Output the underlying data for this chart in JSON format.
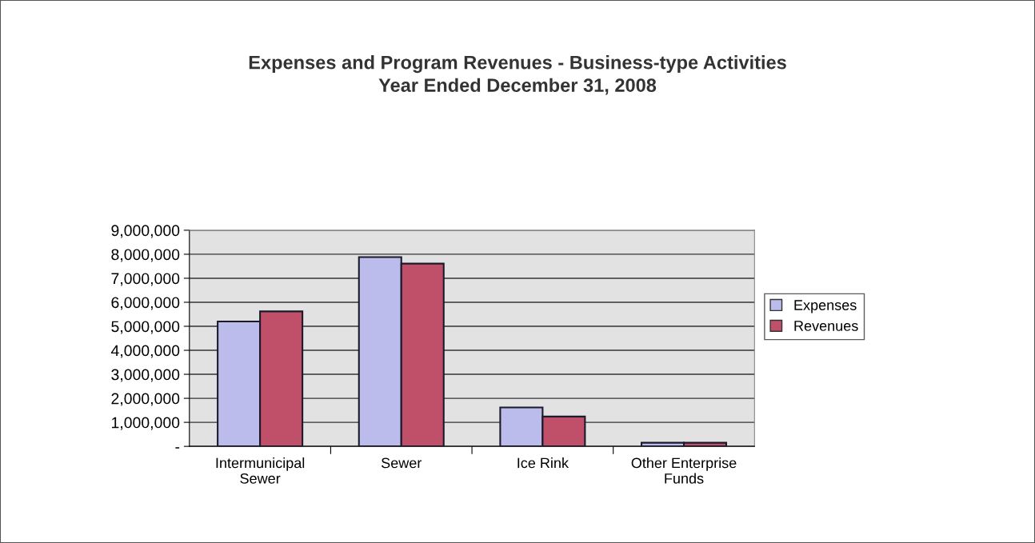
{
  "chart_data": {
    "type": "bar",
    "title": "Expenses and Program Revenues - Business-type Activities",
    "subtitle": "Year Ended December 31, 2008",
    "categories": [
      "Intermunicipal\nSewer",
      "Sewer",
      "Ice Rink",
      "Other Enterprise\nFunds"
    ],
    "series": [
      {
        "name": "Expenses",
        "color": "#bcbcec",
        "values": [
          5200000,
          7880000,
          1620000,
          150000
        ]
      },
      {
        "name": "Revenues",
        "color": "#c0506a",
        "values": [
          5620000,
          7610000,
          1240000,
          150000
        ]
      }
    ],
    "ylim": [
      0,
      9000000
    ],
    "yticks": [
      {
        "value": 0,
        "label": "-"
      },
      {
        "value": 1000000,
        "label": "1,000,000"
      },
      {
        "value": 2000000,
        "label": "2,000,000"
      },
      {
        "value": 3000000,
        "label": "3,000,000"
      },
      {
        "value": 4000000,
        "label": "4,000,000"
      },
      {
        "value": 5000000,
        "label": "5,000,000"
      },
      {
        "value": 6000000,
        "label": "6,000,000"
      },
      {
        "value": 7000000,
        "label": "7,000,000"
      },
      {
        "value": 8000000,
        "label": "8,000,000"
      },
      {
        "value": 9000000,
        "label": "9,000,000"
      }
    ],
    "grid": "y",
    "legend": "right"
  }
}
